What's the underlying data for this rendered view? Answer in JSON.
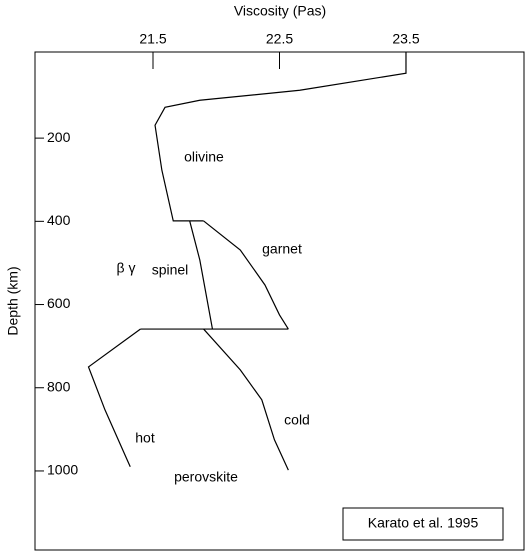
{
  "chart_data": {
    "type": "line",
    "x_label": "Viscosity (Pas)",
    "y_label": "Depth (km)",
    "xlim": [
      20.567,
      24.433
    ],
    "xticks": [
      21.5,
      22.5,
      23.5
    ],
    "ylim": [
      1190,
      -7
    ],
    "yticks": [
      200,
      400,
      600,
      800,
      1000
    ],
    "color": "#000000",
    "series": [
      {
        "x": [
          23.5,
          23.5,
          22.66,
          21.87,
          21.595,
          21.516,
          21.57,
          21.66,
          21.9
        ],
        "values": [
          -7,
          44,
          85,
          109,
          126,
          169,
          277,
          399,
          399
        ]
      },
      {
        "x": [
          21.9,
          22.19,
          22.385,
          22.5,
          22.57
        ],
        "values": [
          399,
          469,
          553,
          625,
          659
        ]
      },
      {
        "x": [
          21.79,
          21.87,
          21.97
        ],
        "values": [
          399,
          493,
          659
        ]
      },
      {
        "x": [
          21.4,
          22.57
        ],
        "values": [
          659,
          659
        ]
      },
      {
        "x": [
          21.4,
          20.99,
          21.12,
          21.32
        ],
        "values": [
          659,
          750,
          853,
          990
        ]
      },
      {
        "x": [
          21.9,
          22.19,
          22.36,
          22.46,
          22.57
        ],
        "values": [
          659,
          757,
          829,
          925,
          998
        ]
      }
    ],
    "annotations": [
      "olivine",
      "garnet",
      "β γ",
      "spinel",
      "hot",
      "cold",
      "perovskite"
    ],
    "note": "Karato et al. 1995"
  }
}
